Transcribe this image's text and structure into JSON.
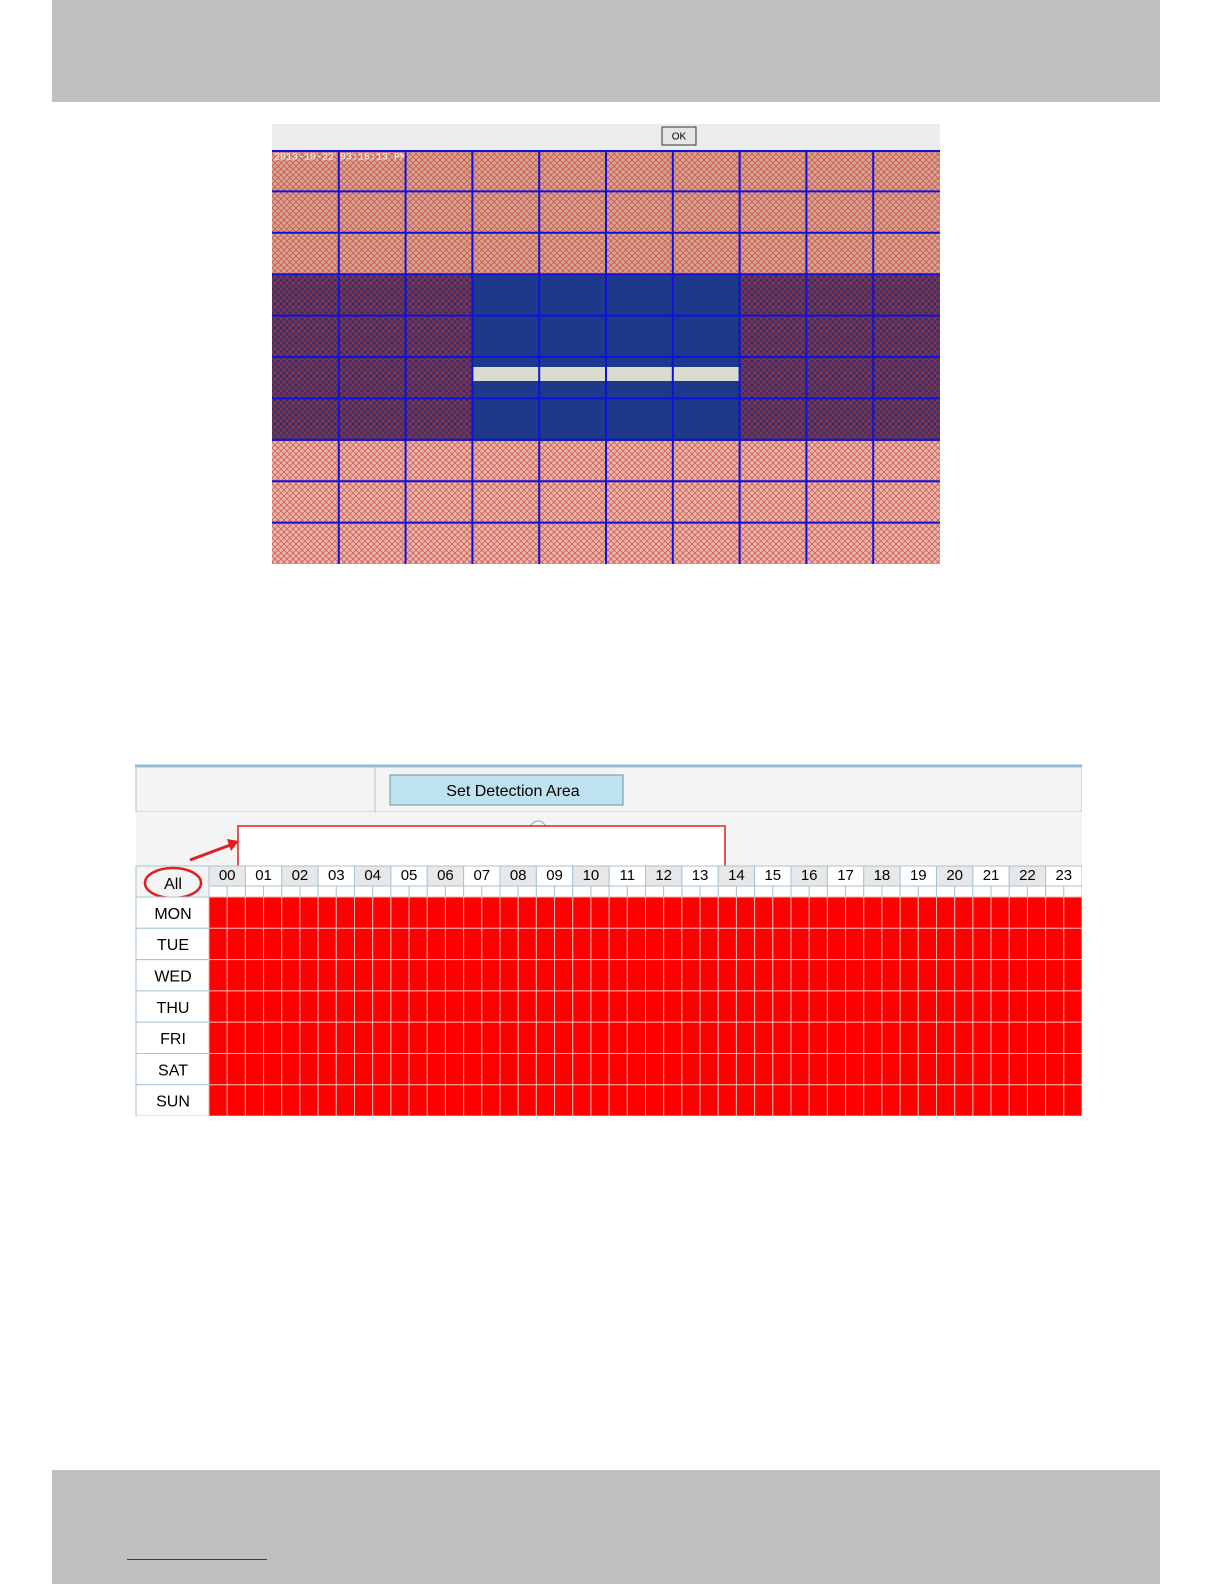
{
  "detection_area": {
    "ok_button": "OK",
    "timestamp": "2013-10-22 03:16:13 PM"
  },
  "schedule": {
    "set_area_button": "Set Detection Area",
    "all_button": "All",
    "hours": [
      "00",
      "01",
      "02",
      "03",
      "04",
      "05",
      "06",
      "07",
      "08",
      "09",
      "10",
      "11",
      "12",
      "13",
      "14",
      "15",
      "16",
      "17",
      "18",
      "19",
      "20",
      "21",
      "22",
      "23"
    ],
    "days": [
      "MON",
      "TUE",
      "WED",
      "THU",
      "FRI",
      "SAT",
      "SUN"
    ]
  }
}
